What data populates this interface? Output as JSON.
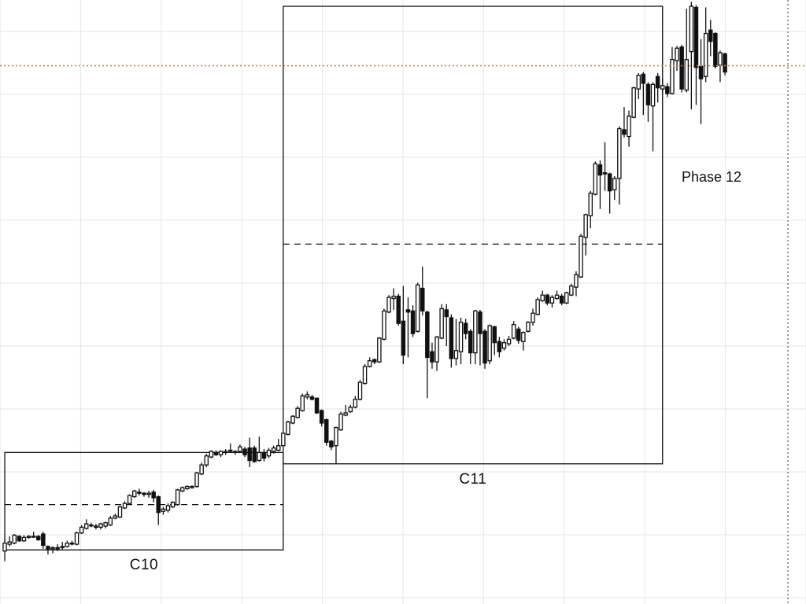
{
  "chart_data": {
    "type": "candlestick",
    "grid": true,
    "cycles": [
      {
        "label": "C10",
        "start": 1,
        "end": 58,
        "low": 4.0,
        "high": 21.2,
        "mid": 12.0
      },
      {
        "label": "C11",
        "start": 59,
        "end": 137,
        "low": 19.2,
        "high": 100.0,
        "mid": 58.0
      }
    ],
    "phase": {
      "label": "Phase 12"
    },
    "reference_level": 89.5,
    "candles": [
      [
        3.8,
        5.2,
        2.0,
        6.0
      ],
      [
        5.0,
        5.4,
        4.6,
        6.4
      ],
      [
        5.2,
        6.6,
        5.0,
        6.8
      ],
      [
        6.4,
        5.6,
        5.4,
        6.6
      ],
      [
        5.6,
        6.2,
        5.4,
        6.6
      ],
      [
        6.2,
        6.4,
        6.0,
        6.6
      ],
      [
        6.4,
        6.4,
        6.2,
        7.2
      ],
      [
        6.4,
        5.8,
        5.6,
        6.6
      ],
      [
        6.8,
        4.8,
        4.2,
        7.2
      ],
      [
        4.6,
        4.2,
        3.2,
        4.8
      ],
      [
        4.2,
        4.4,
        3.4,
        4.6
      ],
      [
        4.4,
        4.2,
        3.8,
        5.0
      ],
      [
        4.4,
        4.6,
        4.0,
        5.4
      ],
      [
        4.6,
        5.2,
        4.4,
        5.6
      ],
      [
        5.2,
        5.2,
        4.8,
        5.6
      ],
      [
        5.0,
        7.0,
        4.8,
        7.2
      ],
      [
        7.0,
        8.0,
        6.8,
        8.4
      ],
      [
        7.8,
        8.6,
        7.6,
        9.4
      ],
      [
        8.4,
        8.4,
        8.0,
        8.8
      ],
      [
        8.2,
        8.0,
        7.6,
        8.6
      ],
      [
        8.0,
        8.6,
        7.6,
        8.8
      ],
      [
        8.2,
        8.8,
        7.8,
        9.0
      ],
      [
        8.4,
        9.6,
        8.2,
        10.0
      ],
      [
        9.6,
        10.0,
        9.4,
        10.4
      ],
      [
        9.8,
        11.6,
        9.6,
        11.8
      ],
      [
        11.4,
        12.2,
        11.2,
        12.6
      ],
      [
        12.2,
        13.6,
        12.0,
        13.8
      ],
      [
        13.4,
        14.4,
        13.2,
        14.6
      ],
      [
        14.2,
        14.0,
        13.6,
        14.8
      ],
      [
        14.0,
        13.8,
        13.4,
        14.2
      ],
      [
        13.8,
        14.0,
        13.2,
        14.4
      ],
      [
        14.2,
        13.2,
        12.4,
        14.6
      ],
      [
        13.4,
        10.6,
        8.4,
        13.6
      ],
      [
        10.8,
        11.2,
        10.2,
        11.6
      ],
      [
        11.0,
        11.8,
        10.6,
        12.2
      ],
      [
        11.6,
        12.4,
        11.4,
        12.6
      ],
      [
        12.0,
        14.6,
        11.8,
        14.8
      ],
      [
        14.4,
        15.0,
        14.2,
        15.2
      ],
      [
        14.8,
        15.2,
        14.6,
        15.4
      ],
      [
        15.0,
        15.2,
        14.8,
        15.4
      ],
      [
        15.2,
        17.6,
        15.0,
        17.8
      ],
      [
        17.4,
        19.0,
        17.2,
        19.4
      ],
      [
        19.0,
        20.6,
        18.6,
        21.0
      ],
      [
        20.4,
        21.4,
        20.2,
        21.6
      ],
      [
        21.2,
        20.8,
        20.6,
        21.6
      ],
      [
        20.8,
        21.4,
        20.4,
        21.6
      ],
      [
        21.2,
        21.4,
        20.8,
        21.8
      ],
      [
        21.6,
        21.6,
        21.2,
        22.8
      ],
      [
        21.2,
        21.4,
        20.8,
        21.6
      ],
      [
        21.4,
        22.2,
        21.2,
        22.6
      ],
      [
        21.8,
        20.8,
        20.4,
        22.2
      ],
      [
        22.0,
        19.8,
        18.6,
        23.8
      ],
      [
        22.0,
        19.6,
        19.4,
        22.4
      ],
      [
        19.8,
        21.2,
        19.6,
        24.0
      ],
      [
        21.2,
        20.2,
        19.6,
        21.8
      ],
      [
        20.6,
        21.6,
        20.2,
        22.0
      ],
      [
        21.4,
        22.0,
        21.0,
        22.4
      ],
      [
        21.6,
        22.4,
        21.4,
        23.6
      ],
      [
        22.4,
        24.6,
        22.2,
        25.0
      ],
      [
        24.4,
        26.6,
        24.2,
        26.8
      ],
      [
        26.4,
        27.6,
        26.2,
        27.8
      ],
      [
        27.4,
        29.0,
        27.2,
        29.4
      ],
      [
        28.6,
        31.2,
        28.4,
        31.6
      ],
      [
        31.0,
        31.4,
        30.6,
        32.0
      ],
      [
        31.0,
        30.6,
        30.4,
        31.4
      ],
      [
        30.8,
        28.2,
        28.0,
        30.8
      ],
      [
        28.6,
        26.4,
        25.8,
        28.8
      ],
      [
        27.0,
        23.0,
        22.4,
        27.2
      ],
      [
        23.2,
        22.2,
        21.6,
        23.4
      ],
      [
        22.4,
        25.6,
        19.2,
        25.8
      ],
      [
        25.2,
        28.0,
        25.0,
        28.4
      ],
      [
        27.8,
        28.2,
        27.6,
        29.6
      ],
      [
        28.4,
        29.2,
        28.2,
        29.6
      ],
      [
        29.2,
        30.6,
        29.0,
        31.2
      ],
      [
        30.6,
        33.6,
        30.4,
        34.0
      ],
      [
        33.4,
        36.4,
        33.2,
        36.8
      ],
      [
        36.4,
        37.4,
        36.2,
        38.0
      ],
      [
        37.6,
        37.2,
        36.8,
        37.8
      ],
      [
        37.2,
        41.4,
        37.0,
        41.6
      ],
      [
        41.2,
        46.2,
        41.0,
        46.6
      ],
      [
        46.0,
        48.6,
        45.8,
        49.0
      ],
      [
        48.4,
        48.8,
        46.4,
        50.2
      ],
      [
        48.8,
        44.0,
        43.6,
        49.2
      ],
      [
        44.4,
        38.4,
        36.8,
        50.6
      ],
      [
        46.4,
        46.0,
        38.0,
        48.6
      ],
      [
        46.2,
        42.2,
        41.6,
        47.2
      ],
      [
        42.6,
        50.8,
        42.4,
        51.2
      ],
      [
        50.2,
        46.2,
        45.4,
        54.0
      ],
      [
        46.0,
        38.0,
        30.8,
        46.2
      ],
      [
        39.0,
        37.2,
        36.0,
        40.6
      ],
      [
        37.2,
        41.6,
        35.6,
        41.8
      ],
      [
        41.4,
        46.6,
        41.2,
        47.4
      ],
      [
        46.4,
        45.2,
        40.0,
        47.4
      ],
      [
        45.0,
        37.8,
        36.2,
        45.6
      ],
      [
        37.8,
        39.2,
        36.6,
        44.8
      ],
      [
        39.0,
        44.2,
        36.8,
        45.0
      ],
      [
        44.0,
        42.2,
        41.2,
        44.8
      ],
      [
        42.6,
        38.8,
        36.8,
        43.0
      ],
      [
        38.8,
        46.2,
        36.8,
        46.4
      ],
      [
        46.0,
        42.2,
        36.6,
        46.4
      ],
      [
        42.6,
        37.0,
        36.0,
        43.0
      ],
      [
        37.4,
        43.6,
        36.8,
        43.8
      ],
      [
        43.4,
        40.6,
        38.4,
        43.6
      ],
      [
        40.8,
        39.0,
        38.0,
        41.6
      ],
      [
        39.6,
        40.6,
        39.2,
        41.2
      ],
      [
        40.4,
        41.2,
        40.0,
        41.8
      ],
      [
        41.4,
        43.8,
        41.2,
        44.4
      ],
      [
        43.0,
        41.0,
        40.4,
        43.4
      ],
      [
        40.8,
        42.4,
        39.2,
        42.6
      ],
      [
        42.6,
        44.2,
        42.4,
        44.4
      ],
      [
        44.2,
        45.8,
        43.6,
        46.6
      ],
      [
        45.6,
        48.2,
        45.4,
        48.6
      ],
      [
        48.0,
        49.0,
        47.8,
        49.8
      ],
      [
        49.0,
        47.6,
        47.2,
        49.2
      ],
      [
        47.6,
        48.6,
        46.8,
        49.0
      ],
      [
        48.4,
        49.0,
        48.2,
        49.8
      ],
      [
        48.8,
        47.6,
        47.2,
        49.2
      ],
      [
        47.6,
        49.4,
        47.4,
        49.6
      ],
      [
        49.0,
        50.6,
        48.8,
        51.0
      ],
      [
        50.4,
        52.6,
        48.8,
        53.2
      ],
      [
        52.2,
        59.4,
        52.0,
        59.8
      ],
      [
        59.2,
        63.2,
        56.0,
        63.4
      ],
      [
        63.0,
        67.0,
        60.8,
        67.4
      ],
      [
        66.8,
        72.2,
        66.6,
        72.6
      ],
      [
        72.0,
        70.2,
        64.2,
        72.8
      ],
      [
        70.6,
        70.4,
        67.4,
        76.0
      ],
      [
        70.4,
        67.4,
        63.4,
        70.6
      ],
      [
        67.6,
        69.6,
        65.8,
        70.0
      ],
      [
        69.6,
        78.4,
        65.0,
        78.8
      ],
      [
        78.2,
        77.4,
        76.8,
        82.2
      ],
      [
        77.0,
        80.6,
        75.2,
        81.6
      ],
      [
        80.4,
        85.6,
        80.2,
        85.8
      ],
      [
        85.4,
        87.8,
        83.6,
        88.2
      ],
      [
        88.0,
        86.4,
        80.8,
        88.4
      ],
      [
        86.2,
        82.6,
        79.6,
        86.6
      ],
      [
        82.4,
        86.2,
        74.4,
        86.6
      ],
      [
        87.6,
        85.6,
        83.0,
        88.2
      ],
      [
        85.4,
        86.0,
        84.6,
        87.2
      ],
      [
        85.8,
        84.6,
        84.0,
        86.4
      ],
      [
        84.6,
        90.6,
        84.4,
        92.8
      ],
      [
        90.4,
        92.6,
        88.6,
        93.0
      ],
      [
        92.8,
        85.4,
        84.8,
        93.2
      ],
      [
        85.2,
        90.6,
        84.8,
        99.6
      ],
      [
        92.0,
        100.0,
        81.8,
        100.8
      ],
      [
        99.8,
        89.2,
        82.6,
        100.2
      ],
      [
        89.4,
        87.2,
        79.2,
        94.2
      ],
      [
        87.6,
        95.2,
        86.6,
        99.8
      ],
      [
        95.8,
        93.8,
        91.2,
        97.6
      ],
      [
        95.2,
        89.4,
        89.0,
        95.4
      ],
      [
        89.6,
        91.8,
        86.6,
        92.2
      ],
      [
        91.6,
        88.4,
        87.8,
        91.8
      ]
    ]
  }
}
